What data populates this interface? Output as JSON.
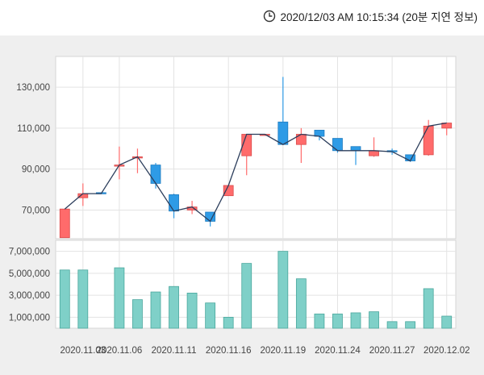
{
  "header": {
    "timestamp": "2020/12/03 AM 10:15:34 (20분 지연 정보)",
    "icon": "clock-icon"
  },
  "chart_data": {
    "type": "candlestick",
    "price_axis": {
      "ticks": [
        70000,
        90000,
        110000,
        130000
      ],
      "tick_labels": [
        "70,000",
        "90,000",
        "110,000",
        "130,000"
      ],
      "range": [
        56000,
        145000
      ],
      "grid": true
    },
    "volume_axis": {
      "ticks": [
        1000000,
        3000000,
        5000000,
        7000000
      ],
      "tick_labels": [
        "1,000,000",
        "3,000,000",
        "5,000,000",
        "7,000,000"
      ],
      "range": [
        0,
        8000000
      ],
      "grid": true
    },
    "x_tick_labels": [
      "2020.11.03",
      "2020.11.06",
      "2020.11.11",
      "2020.11.16",
      "2020.11.19",
      "2020.11.24",
      "2020.11.27",
      "2020.12.02"
    ],
    "x_tick_indices": [
      1,
      3,
      6,
      9,
      12,
      15,
      18,
      21
    ],
    "up_color": "#ff6b6b",
    "down_color": "#2e9be6",
    "volume_color": "#7fd0c8",
    "line_color": "#2c3e5c",
    "candles": [
      {
        "open": 56500,
        "high": 70500,
        "low": 56500,
        "close": 70500,
        "volume": 5300000
      },
      {
        "open": 76000,
        "high": 83000,
        "low": 72000,
        "close": 78000,
        "volume": 5300000
      },
      {
        "open": 78500,
        "high": 78500,
        "low": 78000,
        "close": 78000,
        "volume": 0
      },
      {
        "open": 92000,
        "high": 101000,
        "low": 85000,
        "close": 92000,
        "volume": 5500000
      },
      {
        "open": 95500,
        "high": 100000,
        "low": 88000,
        "close": 96000,
        "volume": 2600000
      },
      {
        "open": 92000,
        "high": 93000,
        "low": 80500,
        "close": 83000,
        "volume": 3300000
      },
      {
        "open": 77500,
        "high": 78000,
        "low": 66000,
        "close": 69500,
        "volume": 3800000
      },
      {
        "open": 70000,
        "high": 74500,
        "low": 68000,
        "close": 71500,
        "volume": 3200000
      },
      {
        "open": 69000,
        "high": 69000,
        "low": 62000,
        "close": 64500,
        "volume": 2300000
      },
      {
        "open": 77000,
        "high": 82000,
        "low": 77000,
        "close": 82000,
        "volume": 1000000
      },
      {
        "open": 96500,
        "high": 107000,
        "low": 87000,
        "close": 107000,
        "volume": 5900000
      },
      {
        "open": 107000,
        "high": 107000,
        "low": 106500,
        "close": 107000,
        "volume": 0
      },
      {
        "open": 113000,
        "high": 135000,
        "low": 102000,
        "close": 102000,
        "volume": 7000000
      },
      {
        "open": 102000,
        "high": 110000,
        "low": 93000,
        "close": 107000,
        "volume": 4500000
      },
      {
        "open": 109000,
        "high": 109000,
        "low": 104000,
        "close": 106000,
        "volume": 1300000
      },
      {
        "open": 105000,
        "high": 105000,
        "low": 98000,
        "close": 99000,
        "volume": 1300000
      },
      {
        "open": 101000,
        "high": 101000,
        "low": 92000,
        "close": 99000,
        "volume": 1400000
      },
      {
        "open": 96500,
        "high": 105500,
        "low": 96000,
        "close": 99000,
        "volume": 1500000
      },
      {
        "open": 99000,
        "high": 100000,
        "low": 97000,
        "close": 98500,
        "volume": 600000
      },
      {
        "open": 97000,
        "high": 97000,
        "low": 93500,
        "close": 94000,
        "volume": 600000
      },
      {
        "open": 97000,
        "high": 114000,
        "low": 96500,
        "close": 111000,
        "volume": 3600000
      },
      {
        "open": 110000,
        "high": 112500,
        "low": 106500,
        "close": 112500,
        "volume": 1100000
      }
    ]
  }
}
